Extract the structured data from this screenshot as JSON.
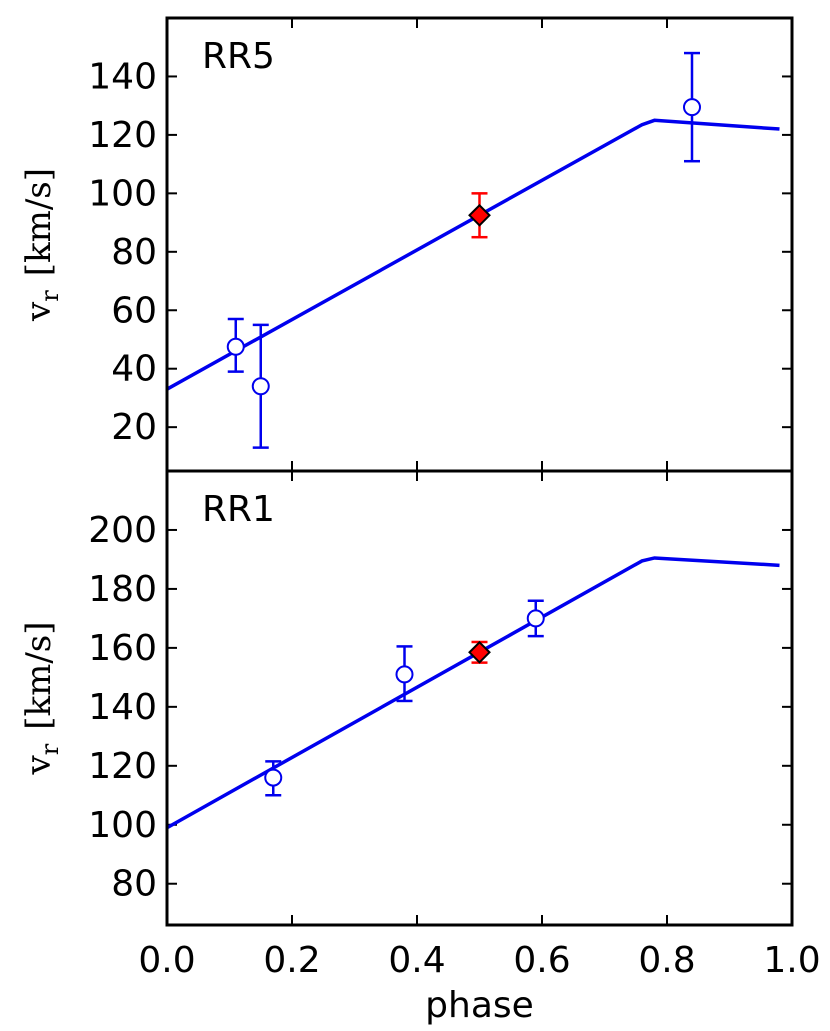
{
  "chart_data": [
    {
      "type": "scatter",
      "panel_label": "RR5",
      "ylabel_main": "v",
      "ylabel_sub": "r",
      "ylabel_units": "[km/s]",
      "ylim": [
        5,
        160
      ],
      "yticks": [
        20,
        40,
        60,
        80,
        100,
        120,
        140
      ],
      "xlim": [
        0.0,
        1.0
      ],
      "grid": false,
      "model_curve": {
        "color": "#0000ee",
        "x": [
          0.0,
          0.76,
          0.78,
          0.98
        ],
        "y": [
          33,
          123.5,
          125,
          122
        ]
      },
      "series": [
        {
          "marker": "open-circle",
          "color": "#0000ee",
          "points": [
            {
              "x": 0.11,
              "y": 47.5,
              "ylo": 39,
              "yhi": 57
            },
            {
              "x": 0.15,
              "y": 34,
              "ylo": 13,
              "yhi": 55
            },
            {
              "x": 0.84,
              "y": 129.5,
              "ylo": 111,
              "yhi": 148
            }
          ]
        },
        {
          "marker": "diamond",
          "color": "#ff0000",
          "points": [
            {
              "x": 0.5,
              "y": 92.5,
              "ylo": 85,
              "yhi": 100
            }
          ]
        }
      ]
    },
    {
      "type": "scatter",
      "panel_label": "RR1",
      "ylabel_main": "v",
      "ylabel_sub": "r",
      "ylabel_units": "[km/s]",
      "xlabel": "phase",
      "xticks": [
        "0.0",
        "0.2",
        "0.4",
        "0.6",
        "0.8",
        "1.0"
      ],
      "ylim": [
        66,
        220
      ],
      "yticks": [
        80,
        100,
        120,
        140,
        160,
        180,
        200
      ],
      "xlim": [
        0.0,
        1.0
      ],
      "grid": false,
      "model_curve": {
        "color": "#0000ee",
        "x": [
          0.0,
          0.76,
          0.78,
          0.98
        ],
        "y": [
          99,
          189.5,
          190.5,
          188
        ]
      },
      "series": [
        {
          "marker": "open-circle",
          "color": "#0000ee",
          "points": [
            {
              "x": 0.17,
              "y": 116,
              "ylo": 110,
              "yhi": 121.5
            },
            {
              "x": 0.38,
              "y": 151,
              "ylo": 142,
              "yhi": 160.5
            },
            {
              "x": 0.59,
              "y": 170,
              "ylo": 164,
              "yhi": 176
            }
          ]
        },
        {
          "marker": "diamond",
          "color": "#ff0000",
          "points": [
            {
              "x": 0.5,
              "y": 158.5,
              "ylo": 155,
              "yhi": 162
            }
          ]
        }
      ]
    }
  ]
}
